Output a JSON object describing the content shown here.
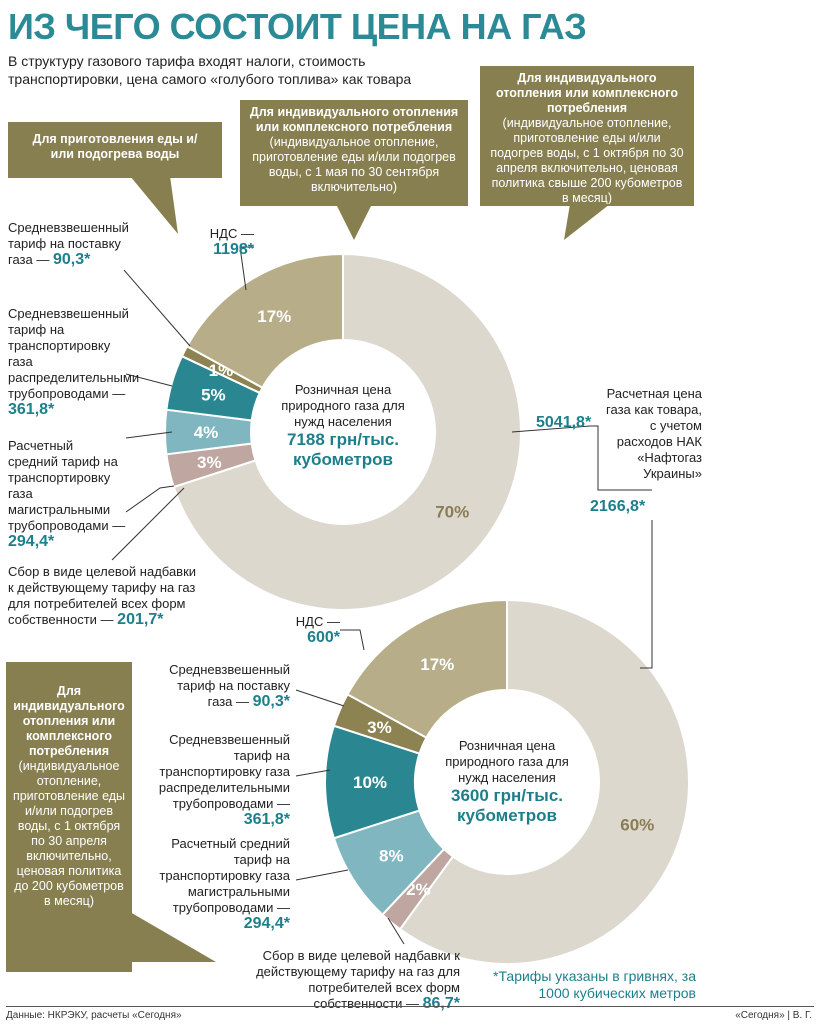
{
  "title": "ИЗ ЧЕГО СОСТОИТ ЦЕНА НА ГАЗ",
  "subtitle": "В структуру газового тарифа входят налоги, стоимость транспортировки, цена самого «голубого топлива» как товара",
  "colors": {
    "title": "#2b8a95",
    "callout": "#877f50",
    "market": "#dcd8ce",
    "vat": "#b7ad88",
    "supply": "#8d8252",
    "distribution": "#2a8792",
    "transmission": "#7fb6c0",
    "levy": "#bfa6a0",
    "value_text": "#1e7f8c"
  },
  "callouts": {
    "cooking_title": "Для приготовления еды и/или подогрева воды",
    "summer_title": "Для индивидуального отопления или комплексного потребления",
    "summer_body": "(индивидуальное отопление, приготовление еды и/или подогрев воды, с 1 мая по 30 сентября включительно)",
    "winter_over_title": "Для индивидуального отопления или комплексного потребления",
    "winter_over_body": "(индивидуальное отопление, приготовление еды и/или подогрев воды, с 1 октября по 30 апреля включительно, ценовая политика свыше 200 кубометров в месяц)",
    "winter_under_title": "Для индивидуального отопления или комплексного потребления",
    "winter_under_body": "(индивидуальное отопление, приготовление еды и/или подогрев воды, с 1 октября по 30 апреля включительно, ценовая политика до 200 кубометров в месяц)"
  },
  "labels": {
    "top": {
      "vat_text": "НДС —",
      "vat_value": "1198*",
      "supply_text": "Средневзвешенный тариф на поставку газа —",
      "supply_value": "90,3*",
      "distribution_text": "Средневзвешенный тариф на транспортировку газа распределительными трубопроводами —",
      "distribution_value": "361,8*",
      "transmission_text": "Расчетный средний тариф на транспортировку газа магистральными трубопроводами —",
      "transmission_value": "294,4*",
      "levy_text": "Сбор в виде целевой надбавки к действующему тарифу на газ для потребителей всех форм собственности —",
      "levy_value": "201,7*"
    },
    "bottom": {
      "vat_text": "НДС —",
      "vat_value": "600*",
      "supply_text": "Средневзвешенный тариф на поставку газа —",
      "supply_value": "90,3*",
      "distribution_text": "Средневзвешенный тариф на транспортировку газа распределительными трубопроводами —",
      "distribution_value": "361,8*",
      "transmission_text": "Расчетный средний тариф на транспортировку газа магистральными трубопроводами —",
      "transmission_value": "294,4*",
      "levy_text": "Сбор в виде целевой надбавки к действующему тарифу на газ для потребителей всех форм собственности —",
      "levy_value": "86,7*"
    },
    "market_text": "Расчетная цена газа как товара, с учетом расходов НАК «Нафтогаз Украины»",
    "market_top_value": "5041,8*",
    "market_bottom_value": "2166,8*"
  },
  "note": "*Тарифы указаны в гривнях, за 1000 кубических метров",
  "source": "Данные: НКРЭКУ, расчеты «Сегодня»",
  "credit": "«Сегодня» | В. Г.",
  "chart_data": [
    {
      "type": "pie",
      "center_label": "Розничная цена природного газа для нужд населения",
      "center_value": "7188 грн/тыс. кубометров",
      "slices": [
        {
          "key": "market",
          "value": 70,
          "label": "70%"
        },
        {
          "key": "levy",
          "value": 3,
          "label": "3%"
        },
        {
          "key": "transmission",
          "value": 4,
          "label": "4%"
        },
        {
          "key": "distribution",
          "value": 5,
          "label": "5%"
        },
        {
          "key": "supply",
          "value": 1,
          "label": "1%"
        },
        {
          "key": "vat",
          "value": 17,
          "label": "17%"
        }
      ]
    },
    {
      "type": "pie",
      "center_label": "Розничная цена природного газа для нужд населения",
      "center_value": "3600 грн/тыс. кубометров",
      "slices": [
        {
          "key": "market",
          "value": 60,
          "label": "60%"
        },
        {
          "key": "levy",
          "value": 2,
          "label": "2%"
        },
        {
          "key": "transmission",
          "value": 8,
          "label": "8%"
        },
        {
          "key": "distribution",
          "value": 10,
          "label": "10%"
        },
        {
          "key": "supply",
          "value": 3,
          "label": "3%"
        },
        {
          "key": "vat",
          "value": 17,
          "label": "17%"
        }
      ]
    }
  ]
}
